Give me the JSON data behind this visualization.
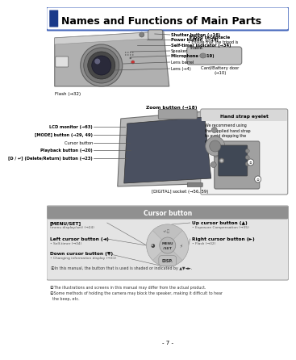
{
  "title": "Names and Functions of Main Parts",
  "page_bg": "#ffffff",
  "page_number": "- 7 -",
  "title_border": "#4466bb",
  "title_bar_color": "#1a3a8a",
  "front_labels": [
    "Shutter button (→16)",
    "Power button  (→14)",
    "Self-timer indicator (→34)",
    "Speaker",
    "Microphone  (→19)",
    "Lens barrel",
    "Lens (→4)"
  ],
  "flash_label": "Flash (→32)",
  "zoom_label": "Zoom button (→18)",
  "tripod_label": "Tripod receptacle",
  "tripod_sub": "• Ensure that the tripod is\n  stable.",
  "card_label": "Card/Battery door",
  "card_label2": "(→10)",
  "back_labels": [
    "LCD monitor (→63)",
    "[MODE] button (→29, 49)",
    "Cursor button",
    "Playback button (→20)",
    "[ᗞ / ↵] (Delete/Return) button (→23)"
  ],
  "digital_label": "[DIGITAL] socket (→56, 59)",
  "hand_strap_title": "Hand strap eyelet",
  "hand_strap_text": "We recommend using\nthe supplied hand strap\nto avoid dropping the\ncamera.",
  "cursor_box_title": "Cursor button",
  "menu_set_label": "[MENU/SET]",
  "menu_set_sub": "(menu display/set) (→24)",
  "up_cursor_label": "Up cursor button (▲)",
  "up_cursor_sub": "• Exposure Compensation (→35)",
  "left_cursor_label": "Left cursor button (◄)",
  "left_cursor_sub": "• Self-timer (→34)",
  "right_cursor_label": "Right cursor button (►)",
  "right_cursor_sub": "• Flash (→32)",
  "down_cursor_label": "Down cursor button (▼)",
  "down_cursor_sub": "• Changing information display (→31)",
  "cursor_note": "ⒶIn this manual, the button that is used is shaded or indicated by ▲▼◄►.",
  "footnote1": "ⒶThe illustrations and screens in this manual may differ from the actual product.",
  "footnote2": "ⒶSome methods of holding the camera may block the speaker, making it difficult to hear",
  "footnote2b": "  the beep, etc."
}
